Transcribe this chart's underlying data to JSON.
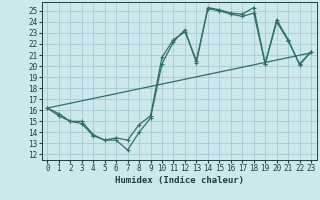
{
  "xlabel": "Humidex (Indice chaleur)",
  "bg_color": "#cce8ec",
  "grid_color": "#aac8d0",
  "line_color": "#2e7068",
  "xlim": [
    -0.5,
    23.5
  ],
  "ylim": [
    11.5,
    25.8
  ],
  "yticks": [
    12,
    13,
    14,
    15,
    16,
    17,
    18,
    19,
    20,
    21,
    22,
    23,
    24,
    25
  ],
  "xticks": [
    0,
    1,
    2,
    3,
    4,
    5,
    6,
    7,
    8,
    9,
    10,
    11,
    12,
    13,
    14,
    15,
    16,
    17,
    18,
    19,
    20,
    21,
    22,
    23
  ],
  "line1_marked": {
    "x": [
      0,
      1,
      2,
      3,
      4,
      5,
      6,
      7,
      8,
      9,
      10,
      11,
      12,
      13,
      14,
      15,
      16,
      17,
      18,
      19,
      20,
      21,
      22,
      23
    ],
    "y": [
      16.2,
      15.5,
      15.0,
      14.8,
      13.7,
      13.3,
      13.3,
      12.4,
      14.0,
      15.3,
      20.2,
      22.2,
      23.3,
      20.3,
      25.3,
      25.1,
      24.8,
      24.7,
      25.3,
      20.2,
      24.2,
      22.4,
      20.1,
      21.3
    ]
  },
  "line2_marked": {
    "x": [
      0,
      1,
      2,
      3,
      4,
      5,
      6,
      7,
      8,
      9,
      10,
      11,
      12,
      13,
      14,
      15,
      16,
      17,
      18,
      19,
      20,
      21,
      22,
      23
    ],
    "y": [
      16.2,
      15.7,
      15.0,
      15.0,
      13.8,
      13.3,
      13.5,
      13.3,
      14.7,
      15.5,
      20.8,
      22.4,
      23.1,
      20.5,
      25.2,
      25.0,
      24.7,
      24.5,
      24.8,
      20.2,
      24.0,
      22.3,
      20.2,
      21.3
    ]
  },
  "line3_diagonal": {
    "x": [
      0,
      23
    ],
    "y": [
      16.2,
      21.2
    ]
  }
}
